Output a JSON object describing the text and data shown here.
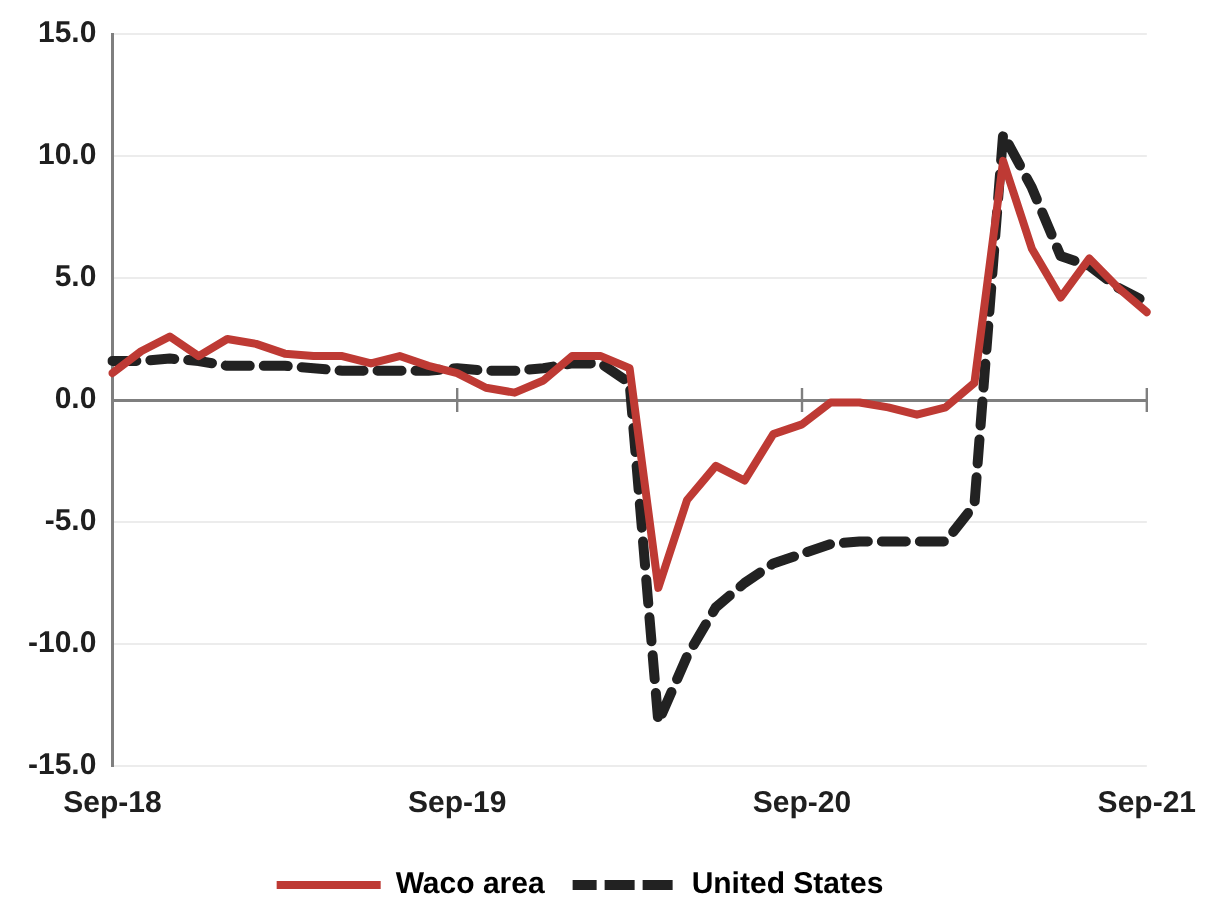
{
  "chart_data": {
    "type": "line",
    "categories": [
      "Sep-18",
      null,
      null,
      null,
      null,
      null,
      null,
      null,
      null,
      null,
      null,
      null,
      "Sep-19",
      null,
      null,
      null,
      null,
      null,
      null,
      null,
      null,
      null,
      null,
      null,
      "Sep-20",
      null,
      null,
      null,
      null,
      null,
      null,
      null,
      null,
      null,
      null,
      null,
      "Sep-21"
    ],
    "series": [
      {
        "name": "Waco area",
        "color": "#be3a34",
        "line_style": "solid",
        "values": [
          1.1,
          2.0,
          2.6,
          1.8,
          2.5,
          2.3,
          1.9,
          1.8,
          1.8,
          1.5,
          1.8,
          1.4,
          1.1,
          0.5,
          0.3,
          0.8,
          1.8,
          1.8,
          1.3,
          -7.7,
          -4.1,
          -2.7,
          -3.3,
          -1.4,
          -1.0,
          -0.1,
          -0.1,
          -0.3,
          -0.6,
          -0.3,
          0.7,
          9.8,
          6.2,
          4.2,
          5.8,
          4.6,
          3.6
        ]
      },
      {
        "name": "United States",
        "color": "#222222",
        "line_style": "dashed",
        "values": [
          1.6,
          1.6,
          1.7,
          1.6,
          1.4,
          1.4,
          1.4,
          1.3,
          1.2,
          1.2,
          1.2,
          1.2,
          1.3,
          1.2,
          1.2,
          1.3,
          1.5,
          1.5,
          0.7,
          -13.2,
          -10.5,
          -8.5,
          -7.5,
          -6.7,
          -6.3,
          -5.9,
          -5.8,
          -5.8,
          -5.8,
          -5.8,
          -4.3,
          10.9,
          8.7,
          5.9,
          5.5,
          4.6,
          4.0
        ]
      }
    ],
    "ylim": [
      -15,
      15
    ],
    "yticks": [
      {
        "value": -15,
        "label": "-15.0"
      },
      {
        "value": -10,
        "label": "-10.0"
      },
      {
        "value": -5,
        "label": "-5.0"
      },
      {
        "value": 0,
        "label": "0.0"
      },
      {
        "value": 5,
        "label": "5.0"
      },
      {
        "value": 10,
        "label": "10.0"
      },
      {
        "value": 15,
        "label": "15.0"
      }
    ],
    "grid": "y",
    "legend": "bottom",
    "marker": "none"
  }
}
